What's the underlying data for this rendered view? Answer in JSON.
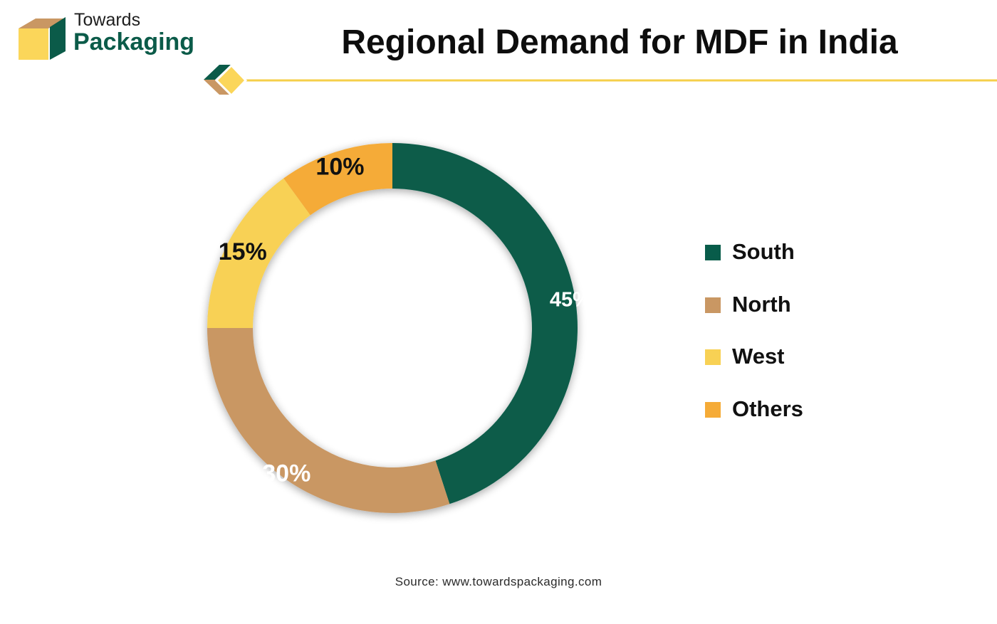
{
  "brand": {
    "line1": "Towards",
    "line2": "Packaging"
  },
  "colors": {
    "South": "#085c4a",
    "North": "#c99763",
    "West": "#f8d154",
    "Others": "#f5ab37",
    "rule": "#f5cf4a",
    "brand_green": "#0b5b49",
    "brand_tan": "#c99763",
    "brand_yellow": "#fbd65a"
  },
  "chart_data": {
    "type": "pie",
    "title": "Regional Demand for MDF in India",
    "categories": [
      "South",
      "North",
      "West",
      "Others"
    ],
    "values": [
      45,
      30,
      15,
      10
    ],
    "data_labels": [
      "45%",
      "30%",
      "15%",
      "10%"
    ],
    "legend_position": "right"
  },
  "source": "Source: www.towardspackaging.com"
}
